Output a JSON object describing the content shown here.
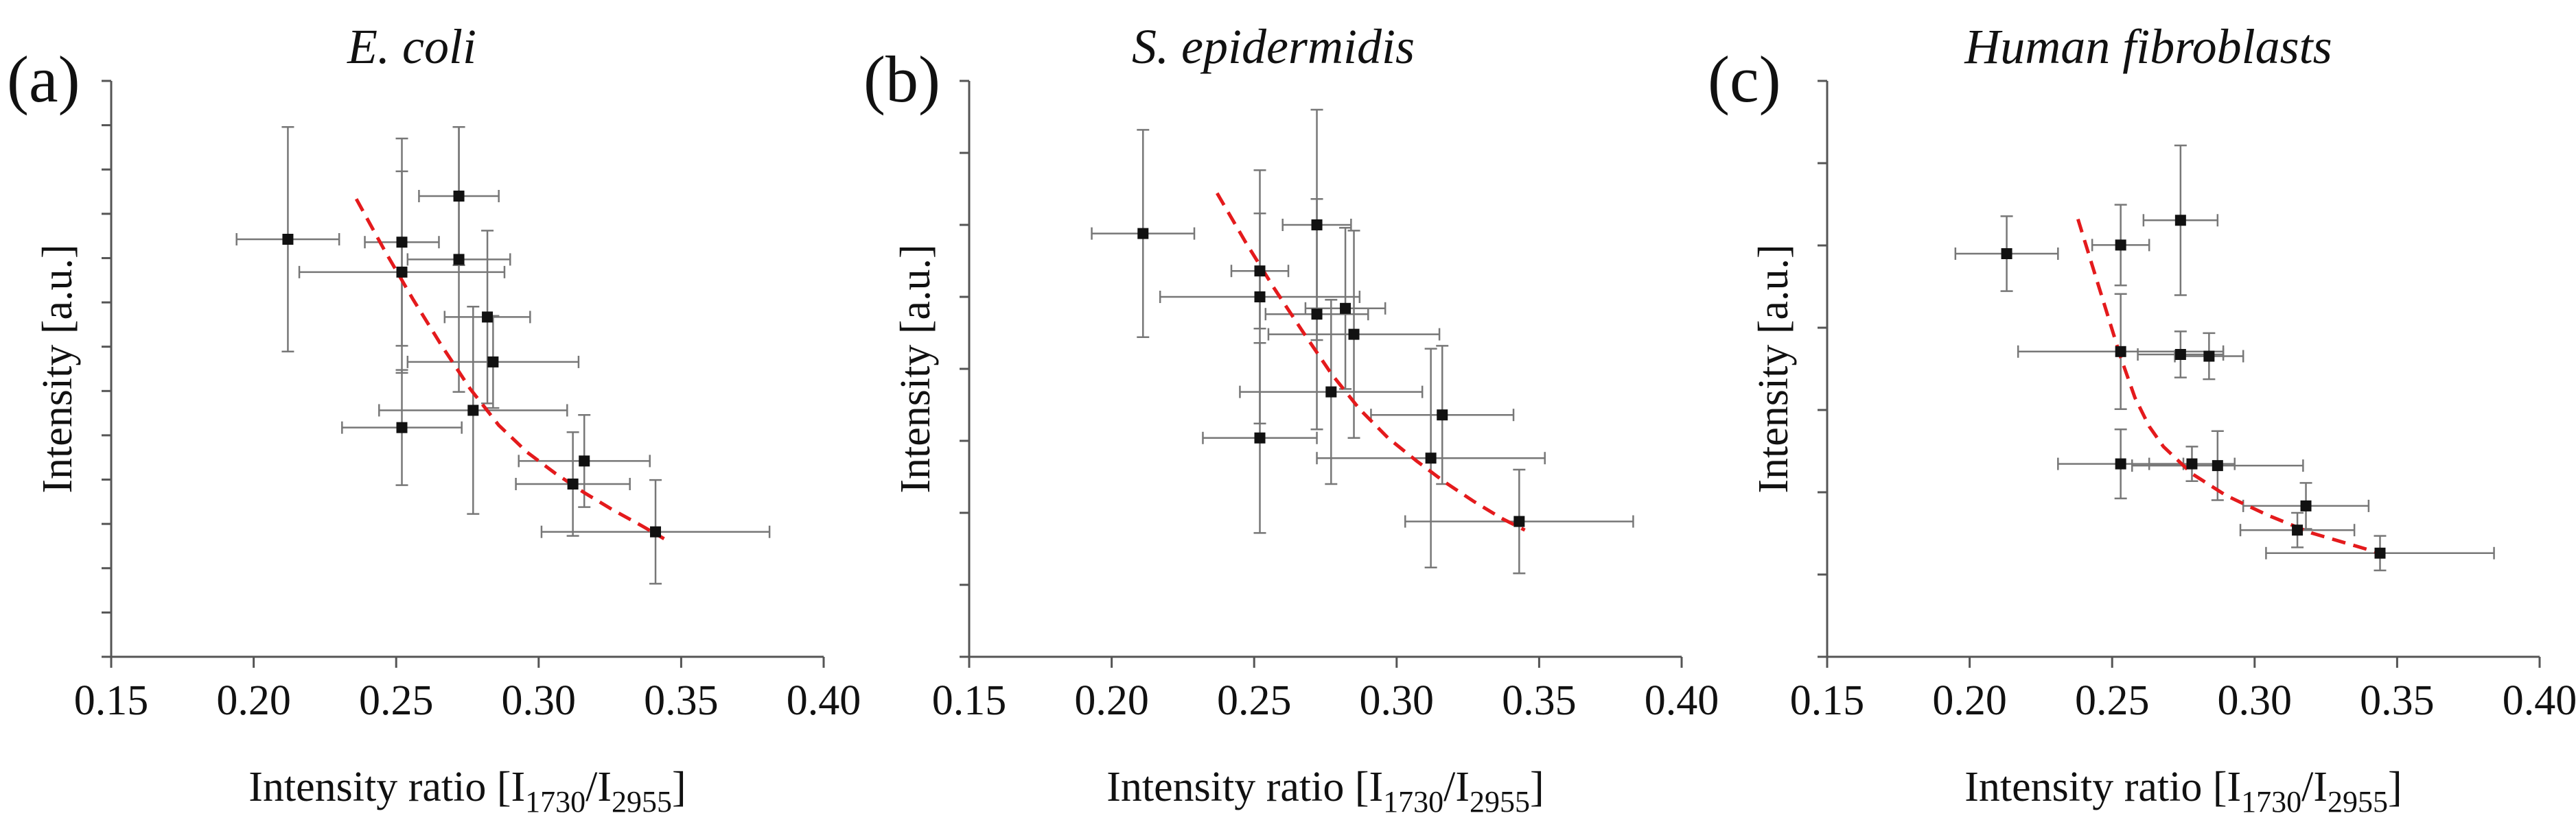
{
  "chart_data": [
    {
      "type": "scatter",
      "panel_label": "(a)",
      "title": "E. coli",
      "xlabel_prefix": "Intensity ratio [I",
      "xlabel_sub1": "1730",
      "xlabel_mid": "/I",
      "xlabel_sub2": "2955",
      "xlabel_suffix": "]",
      "ylabel": "Intensity [a.u.]",
      "xlim": [
        0.15,
        0.4
      ],
      "ylim": [
        0,
        1
      ],
      "xticks": [
        "0.15",
        "0.20",
        "0.25",
        "0.30",
        "0.35",
        "0.40"
      ],
      "y_minor_ticks": 13,
      "points": [
        {
          "x": 0.212,
          "y": 0.725,
          "xerr": 0.018,
          "yerr": 0.195
        },
        {
          "x": 0.252,
          "y": 0.72,
          "xerr": 0.013,
          "yerr": 0.18
        },
        {
          "x": 0.252,
          "y": 0.668,
          "xerr": 0.036,
          "yerr": 0.175
        },
        {
          "x": 0.252,
          "y": 0.398,
          "xerr": 0.021,
          "yerr": 0.1
        },
        {
          "x": 0.272,
          "y": 0.8,
          "xerr": 0.014,
          "yerr": 0.12
        },
        {
          "x": 0.272,
          "y": 0.69,
          "xerr": 0.018,
          "yerr": 0.23
        },
        {
          "x": 0.282,
          "y": 0.59,
          "xerr": 0.015,
          "yerr": 0.15
        },
        {
          "x": 0.284,
          "y": 0.512,
          "xerr": 0.03,
          "yerr": 0.08
        },
        {
          "x": 0.277,
          "y": 0.428,
          "xerr": 0.033,
          "yerr": 0.18
        },
        {
          "x": 0.316,
          "y": 0.34,
          "xerr": 0.023,
          "yerr": 0.08
        },
        {
          "x": 0.312,
          "y": 0.3,
          "xerr": 0.02,
          "yerr": 0.09
        },
        {
          "x": 0.341,
          "y": 0.217,
          "xerr": 0.04,
          "yerr": 0.09
        }
      ],
      "fit": [
        {
          "x": 0.236,
          "y": 0.795
        },
        {
          "x": 0.246,
          "y": 0.705
        },
        {
          "x": 0.256,
          "y": 0.62
        },
        {
          "x": 0.266,
          "y": 0.54
        },
        {
          "x": 0.276,
          "y": 0.465
        },
        {
          "x": 0.286,
          "y": 0.402
        },
        {
          "x": 0.296,
          "y": 0.355
        },
        {
          "x": 0.306,
          "y": 0.318
        },
        {
          "x": 0.316,
          "y": 0.285
        },
        {
          "x": 0.326,
          "y": 0.255
        },
        {
          "x": 0.336,
          "y": 0.228
        },
        {
          "x": 0.344,
          "y": 0.205
        }
      ],
      "fit_color": "#e41a1c",
      "point_color": "#111111",
      "errorbar_color": "#777777"
    },
    {
      "type": "scatter",
      "panel_label": "(b)",
      "title": "S. epidermidis",
      "xlabel_prefix": "Intensity ratio [I",
      "xlabel_sub1": "1730",
      "xlabel_mid": "/I",
      "xlabel_sub2": "2955",
      "xlabel_suffix": "]",
      "ylabel": "Intensity [a.u.]",
      "xlim": [
        0.15,
        0.4
      ],
      "ylim": [
        0,
        1
      ],
      "xticks": [
        "0.15",
        "0.20",
        "0.25",
        "0.30",
        "0.35",
        "0.40"
      ],
      "y_minor_ticks": 8,
      "points": [
        {
          "x": 0.211,
          "y": 0.735,
          "xerr": 0.018,
          "yerr": 0.18
        },
        {
          "x": 0.252,
          "y": 0.67,
          "xerr": 0.01,
          "yerr": 0.1
        },
        {
          "x": 0.252,
          "y": 0.625,
          "xerr": 0.035,
          "yerr": 0.22
        },
        {
          "x": 0.252,
          "y": 0.38,
          "xerr": 0.02,
          "yerr": 0.165
        },
        {
          "x": 0.272,
          "y": 0.75,
          "xerr": 0.012,
          "yerr": 0.2
        },
        {
          "x": 0.272,
          "y": 0.595,
          "xerr": 0.018,
          "yerr": 0.2
        },
        {
          "x": 0.282,
          "y": 0.605,
          "xerr": 0.014,
          "yerr": 0.14
        },
        {
          "x": 0.285,
          "y": 0.56,
          "xerr": 0.03,
          "yerr": 0.18
        },
        {
          "x": 0.277,
          "y": 0.46,
          "xerr": 0.032,
          "yerr": 0.16
        },
        {
          "x": 0.316,
          "y": 0.42,
          "xerr": 0.025,
          "yerr": 0.12
        },
        {
          "x": 0.312,
          "y": 0.345,
          "xerr": 0.04,
          "yerr": 0.19
        },
        {
          "x": 0.343,
          "y": 0.235,
          "xerr": 0.04,
          "yerr": 0.09
        }
      ],
      "fit": [
        {
          "x": 0.237,
          "y": 0.805
        },
        {
          "x": 0.247,
          "y": 0.72
        },
        {
          "x": 0.257,
          "y": 0.64
        },
        {
          "x": 0.267,
          "y": 0.565
        },
        {
          "x": 0.277,
          "y": 0.492
        },
        {
          "x": 0.287,
          "y": 0.43
        },
        {
          "x": 0.297,
          "y": 0.38
        },
        {
          "x": 0.307,
          "y": 0.34
        },
        {
          "x": 0.317,
          "y": 0.303
        },
        {
          "x": 0.327,
          "y": 0.27
        },
        {
          "x": 0.337,
          "y": 0.24
        },
        {
          "x": 0.345,
          "y": 0.22
        }
      ],
      "fit_color": "#e41a1c",
      "point_color": "#111111",
      "errorbar_color": "#777777"
    },
    {
      "type": "scatter",
      "panel_label": "(c)",
      "title": "Human fibroblasts",
      "xlabel_prefix": "Intensity ratio [I",
      "xlabel_sub1": "1730",
      "xlabel_mid": "/I",
      "xlabel_sub2": "2955",
      "xlabel_suffix": "]",
      "ylabel": "Intensity [a.u.]",
      "xlim": [
        0.15,
        0.4
      ],
      "ylim": [
        0,
        1
      ],
      "xticks": [
        "0.15",
        "0.20",
        "0.25",
        "0.30",
        "0.35",
        "0.40"
      ],
      "y_minor_ticks": 7,
      "points": [
        {
          "x": 0.213,
          "y": 0.7,
          "xerr": 0.018,
          "yerr": 0.065
        },
        {
          "x": 0.253,
          "y": 0.715,
          "xerr": 0.01,
          "yerr": 0.07
        },
        {
          "x": 0.274,
          "y": 0.758,
          "xerr": 0.013,
          "yerr": 0.13
        },
        {
          "x": 0.253,
          "y": 0.53,
          "xerr": 0.036,
          "yerr": 0.1
        },
        {
          "x": 0.274,
          "y": 0.525,
          "xerr": 0.015,
          "yerr": 0.04
        },
        {
          "x": 0.284,
          "y": 0.522,
          "xerr": 0.012,
          "yerr": 0.04
        },
        {
          "x": 0.253,
          "y": 0.335,
          "xerr": 0.022,
          "yerr": 0.06
        },
        {
          "x": 0.278,
          "y": 0.335,
          "xerr": 0.015,
          "yerr": 0.03
        },
        {
          "x": 0.287,
          "y": 0.332,
          "xerr": 0.03,
          "yerr": 0.06
        },
        {
          "x": 0.318,
          "y": 0.262,
          "xerr": 0.022,
          "yerr": 0.04
        },
        {
          "x": 0.315,
          "y": 0.22,
          "xerr": 0.02,
          "yerr": 0.03
        },
        {
          "x": 0.344,
          "y": 0.18,
          "xerr": 0.04,
          "yerr": 0.03
        }
      ],
      "fit": [
        {
          "x": 0.238,
          "y": 0.76
        },
        {
          "x": 0.243,
          "y": 0.68
        },
        {
          "x": 0.248,
          "y": 0.6
        },
        {
          "x": 0.253,
          "y": 0.52
        },
        {
          "x": 0.258,
          "y": 0.45
        },
        {
          "x": 0.263,
          "y": 0.4
        },
        {
          "x": 0.268,
          "y": 0.365
        },
        {
          "x": 0.278,
          "y": 0.318
        },
        {
          "x": 0.29,
          "y": 0.28
        },
        {
          "x": 0.305,
          "y": 0.245
        },
        {
          "x": 0.32,
          "y": 0.215
        },
        {
          "x": 0.344,
          "y": 0.18
        }
      ],
      "fit_color": "#e41a1c",
      "point_color": "#111111",
      "errorbar_color": "#777777"
    }
  ]
}
